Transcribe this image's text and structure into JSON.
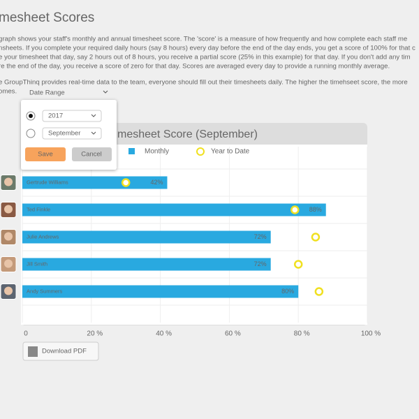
{
  "header": {
    "title": "mesheet Scores"
  },
  "description": {
    "paragraphs": [
      [
        "graph shows your staff's monthly and annual timesheet score. The 'score' is a measure of how frequently and how complete each staff me",
        "nsheets. If you complete your required daily hours (say 8 hours) every day before the end of the day ends, you get a score of 100% for that c",
        "e your timesheet that day, say 2 hours out of 8 hours, you receive a partial score (25% in this example) for that day. If you don't add any tim",
        "re the end of the day, you receive a score of zero for that day.  Scores are averaged every day to provide a running monthly average."
      ],
      [
        "e GroupThinq provides real-time data to the team, everyone should fill out their timesheets daily. The higher the timehseet score, the more",
        "omes."
      ]
    ]
  },
  "controls": {
    "date_range": "Date Range",
    "year": "2017",
    "month": "September",
    "save": "Save",
    "cancel": "Cancel"
  },
  "download": "Download PDF",
  "chart_data": {
    "type": "bar",
    "orientation": "horizontal",
    "title": "mesheet Score (September)",
    "categories": [
      "Gertrude Williams",
      "Ted Finkle",
      "Julie Andrews",
      "Jill Smith",
      "Andy Summers"
    ],
    "series": [
      {
        "name": "Monthly",
        "color": "#29a9e0",
        "values": [
          42,
          88,
          72,
          72,
          80
        ],
        "value_labels": [
          "42%",
          "88%",
          "72%",
          "72%",
          "80%"
        ]
      },
      {
        "name": "Year to Date",
        "color": "#f0e020",
        "values": [
          30,
          79,
          85,
          80,
          86
        ]
      }
    ],
    "xlim": [
      0,
      100
    ],
    "xticks": [
      0,
      {
        "value": 20,
        "label": "20 %"
      },
      {
        "value": 40,
        "label": "40 %"
      },
      {
        "value": 60,
        "label": "60 %"
      },
      {
        "value": 80,
        "label": "80 %"
      },
      {
        "value": 100,
        "label": "100 %"
      }
    ],
    "grid": true
  }
}
